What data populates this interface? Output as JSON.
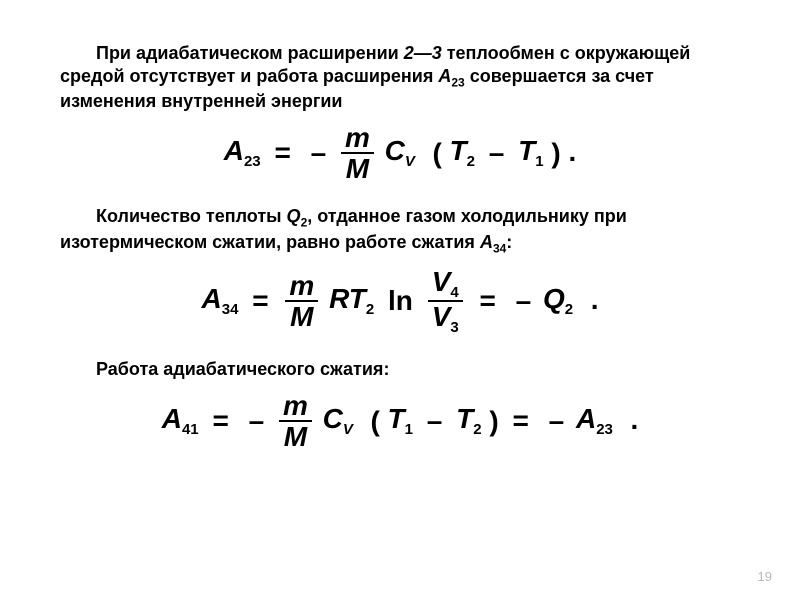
{
  "paras": {
    "p1_a": "При адиабатическом расширении ",
    "p1_range": "2—3",
    "p1_b": " теплообмен с окружающей средой отсутствует и работа расширения ",
    "p1_A": "A",
    "p1_sub23": "23",
    "p1_c": " совершается за счет изменения внутренней энергии",
    "p2_a": "Количество теплоты ",
    "p2_Q": "Q",
    "p2_sub2": "2",
    "p2_b": ", отданное газом холодильнику при изотермическом сжатии, равно работе сжатия ",
    "p2_A": "A",
    "p2_sub34": "34",
    "p2_c": ":",
    "p3": "Работа адиабатического сжатия:"
  },
  "eq": {
    "A": "A",
    "m": "m",
    "M": "M",
    "C": "C",
    "V": "V",
    "R": "R",
    "T": "T",
    "Q": "Q",
    "ln": "ln",
    "eq": "=",
    "minus": "–",
    "lp": "(",
    "rp": ")",
    "dot": ".",
    "s23": "23",
    "s34": "34",
    "s41": "41",
    "s1": "1",
    "s2": "2",
    "s3": "3",
    "s4": "4"
  },
  "pagenum": "19"
}
